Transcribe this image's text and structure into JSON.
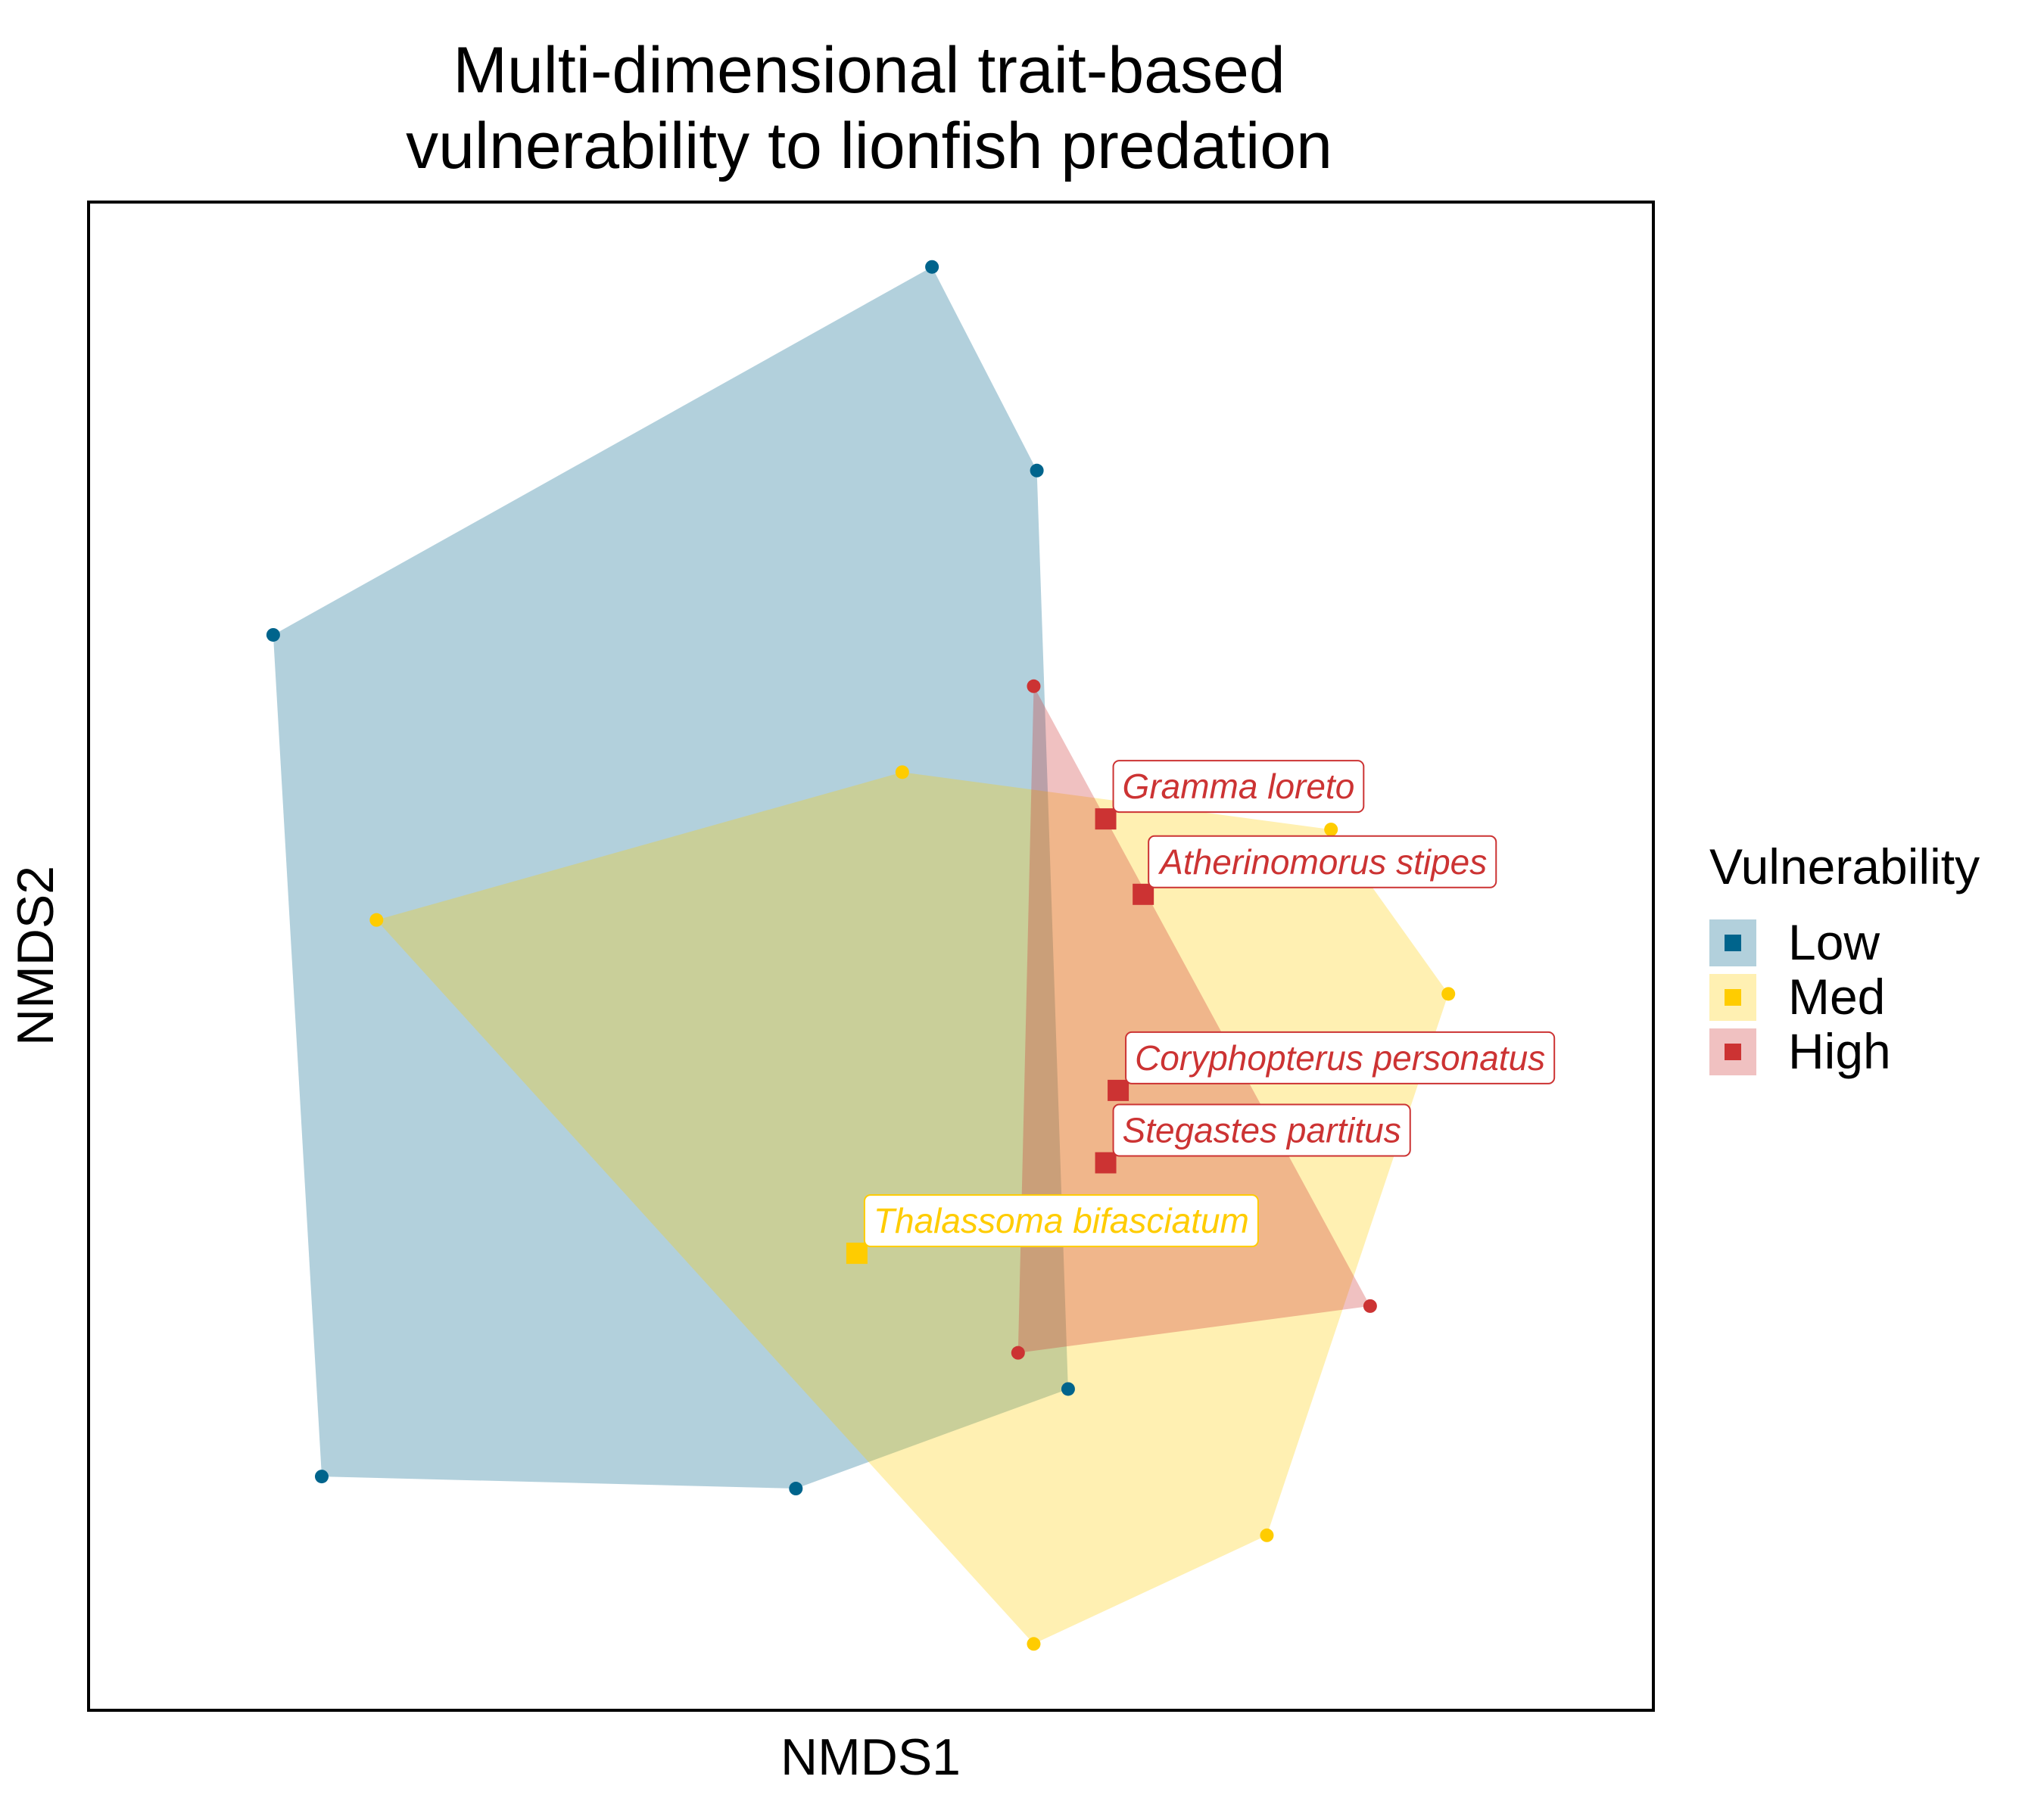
{
  "chart_data": {
    "type": "scatter",
    "title": [
      "Multi-dimensional trait-based",
      "vulnerability to lionfish predation"
    ],
    "xlabel": "NMDS1",
    "ylabel": "NMDS2",
    "xlim": [
      0,
      100
    ],
    "ylim": [
      0,
      100
    ],
    "grid": false,
    "legend": {
      "title": "Vulnerability",
      "position": "right",
      "entries": [
        "Low",
        "Med",
        "High"
      ]
    },
    "series": [
      {
        "name": "Low",
        "color": "#00648C",
        "fill": "#B3D1DD",
        "hull_points": [
          [
            53.9,
            95.7
          ],
          [
            60.6,
            82.2
          ],
          [
            62.6,
            21.3
          ],
          [
            45.2,
            14.7
          ],
          [
            14.9,
            15.5
          ],
          [
            11.8,
            71.3
          ]
        ]
      },
      {
        "name": "Med",
        "color": "#FFCC00",
        "fill": "#FFF0AA",
        "hull_points": [
          [
            52.0,
            62.2
          ],
          [
            79.4,
            58.4
          ],
          [
            86.9,
            47.5
          ],
          [
            75.3,
            11.6
          ],
          [
            60.4,
            4.4
          ],
          [
            18.4,
            52.4
          ]
        ],
        "labeled": [
          {
            "label": "Thalassoma bifasciatum",
            "x": 49.1,
            "y": 30.3
          }
        ]
      },
      {
        "name": "High",
        "color": "#CC3333",
        "fill": "#E08C8C",
        "hull_points": [
          [
            60.4,
            67.9
          ],
          [
            81.9,
            26.8
          ],
          [
            59.4,
            23.7
          ]
        ],
        "labeled": [
          {
            "label": "Gramma loreto",
            "x": 65.0,
            "y": 59.1
          },
          {
            "label": "Atherinomorus stipes",
            "x": 67.4,
            "y": 54.1
          },
          {
            "label": "Coryphopterus personatus",
            "x": 65.8,
            "y": 41.1
          },
          {
            "label": "Stegastes partitus",
            "x": 65.0,
            "y": 36.3
          }
        ]
      }
    ]
  }
}
